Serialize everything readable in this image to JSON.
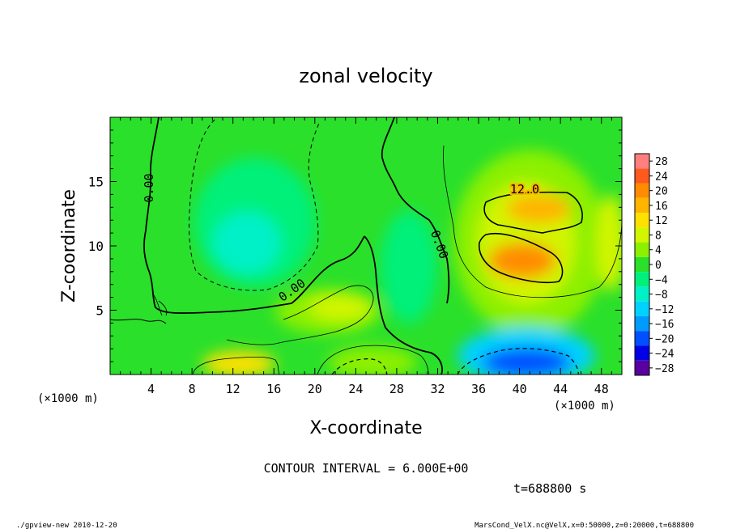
{
  "chart_data": {
    "type": "heatmap",
    "title": "zonal velocity",
    "xlabel": "X-coordinate",
    "ylabel": "Z-coordinate",
    "x_unit": "(×1000 m)",
    "y_unit": "(×1000 m)",
    "xlim": [
      0,
      50
    ],
    "ylim": [
      0,
      20
    ],
    "x_ticks": [
      4,
      8,
      12,
      16,
      20,
      24,
      28,
      32,
      36,
      40,
      44,
      48
    ],
    "y_ticks": [
      5,
      10,
      15
    ],
    "colorbar": {
      "levels": [
        28,
        24,
        20,
        16,
        12,
        8,
        4,
        0,
        -4,
        -8,
        -12,
        -16,
        -20,
        -24,
        -28
      ],
      "colors": [
        "#ff7f7f",
        "#ff5a1e",
        "#ff8c00",
        "#ffb400",
        "#ffe100",
        "#d2f500",
        "#8cf000",
        "#2ae02a",
        "#00f07a",
        "#00f0c8",
        "#00d2ff",
        "#009bff",
        "#0050ff",
        "#0000e6",
        "#5a00a0"
      ]
    },
    "contour_labels": [
      {
        "text": "0.00",
        "x": 4.2,
        "y": 14.5,
        "rotation": -90
      },
      {
        "text": "0.00",
        "x": 18.0,
        "y": 6.3,
        "rotation": -35
      },
      {
        "text": "0.00",
        "x": 31.8,
        "y": 10.0,
        "rotation": 70
      },
      {
        "text": "12.0",
        "x": 40.5,
        "y": 14.1,
        "rotation": 0
      }
    ],
    "contour_interval": "CONTOUR INTERVAL = 6.000E+00",
    "time": "t=688800 s",
    "extrema": {
      "max_approx": 16,
      "min_approx": -16
    }
  },
  "footer": {
    "left": "./gpview-new  2010-12-20",
    "right": "MarsCond_VelX.nc@VelX,x=0:50000,z=0:20000,t=688800"
  }
}
